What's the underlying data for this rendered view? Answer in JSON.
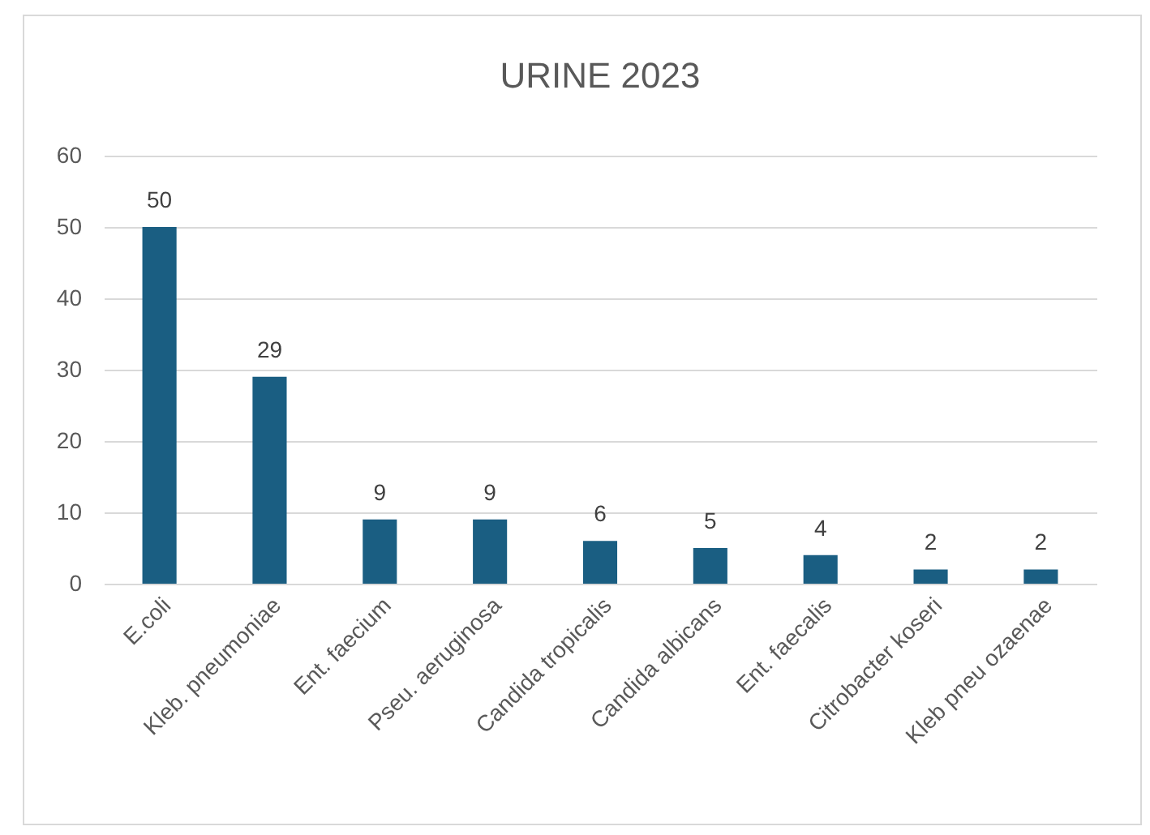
{
  "chart_data": {
    "type": "bar",
    "title": "URINE 2023",
    "categories": [
      "E.coli",
      "Kleb. pneumoniae",
      "Ent. faecium",
      "Pseu. aeruginosa",
      "Candida tropicalis",
      "Candida albicans",
      "Ent. faecalis",
      "Citrobacter koseri",
      "Kleb pneu ozaenae"
    ],
    "values": [
      50,
      29,
      9,
      9,
      6,
      5,
      4,
      2,
      2
    ],
    "color": "#1a5e82",
    "ylim": [
      0,
      60
    ],
    "yticks": [
      0,
      10,
      20,
      30,
      40,
      50,
      60
    ],
    "grid": "y",
    "data_labels": true
  }
}
